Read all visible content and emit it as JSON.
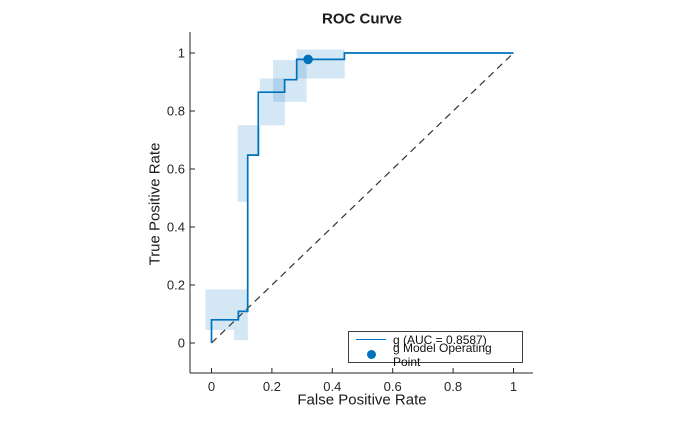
{
  "figure": {
    "title": "ROC Curve",
    "x_label": "False Positive Rate",
    "y_label": "True Positive Rate"
  },
  "legend": {
    "entries": [
      {
        "icon": "line-sample",
        "label": "g (AUC = 0.8587)"
      },
      {
        "icon": "marker-sample",
        "label": "g Model Operating Point"
      }
    ]
  },
  "colors": {
    "curve": "#0072BD",
    "marker": "#0072BD",
    "band": "rgba(0,114,189,0.17)",
    "reference": "#333333",
    "axis": "#262626",
    "text": "#262626",
    "legend_border": "#3f3f3f",
    "background": "#ffffff"
  },
  "chart_data": {
    "type": "line",
    "title": "ROC Curve",
    "xlabel": "False Positive Rate",
    "ylabel": "True Positive Rate",
    "xlim": [
      -0.071,
      1.065
    ],
    "ylim": [
      -0.103,
      1.072
    ],
    "grid": false,
    "legend_position": "southeast",
    "x_ticks": [
      0,
      0.2,
      0.4,
      0.6,
      0.8,
      1
    ],
    "y_ticks": [
      0,
      0.2,
      0.4,
      0.6,
      0.8,
      1
    ],
    "x_tick_labels": [
      "0",
      "0.2",
      "0.4",
      "0.6",
      "0.8",
      "1"
    ],
    "y_tick_labels": [
      "0",
      "0.2",
      "0.4",
      "0.6",
      "0.8",
      "1"
    ],
    "series": [
      {
        "name": "g (AUC = 0.8587)",
        "auc": 0.8587,
        "style": "step",
        "points": [
          [
            0,
            0
          ],
          [
            0,
            0.08
          ],
          [
            0.089,
            0.08
          ],
          [
            0.089,
            0.109
          ],
          [
            0.12,
            0.109
          ],
          [
            0.12,
            0.648
          ],
          [
            0.155,
            0.648
          ],
          [
            0.155,
            0.865
          ],
          [
            0.242,
            0.865
          ],
          [
            0.242,
            0.908
          ],
          [
            0.282,
            0.908
          ],
          [
            0.282,
            0.978
          ],
          [
            0.44,
            0.978
          ],
          [
            0.44,
            1
          ],
          [
            1,
            1
          ]
        ]
      }
    ],
    "confidence_band_blocks": [
      [
        -0.02,
        0.045,
        0.075,
        0.185
      ],
      [
        0.075,
        0.01,
        0.12,
        0.185
      ],
      [
        0.087,
        0.487,
        0.122,
        0.751
      ],
      [
        0.122,
        0.648,
        0.161,
        0.751
      ],
      [
        0.16,
        0.751,
        0.243,
        0.912
      ],
      [
        0.204,
        0.832,
        0.315,
        0.976
      ],
      [
        0.282,
        0.912,
        0.441,
        1.012
      ]
    ],
    "operating_point": {
      "x": 0.32,
      "y": 0.978,
      "label": "g Model Operating Point"
    },
    "reference_line": {
      "from": [
        0,
        0
      ],
      "to": [
        1,
        1
      ],
      "style": "dashed"
    }
  }
}
